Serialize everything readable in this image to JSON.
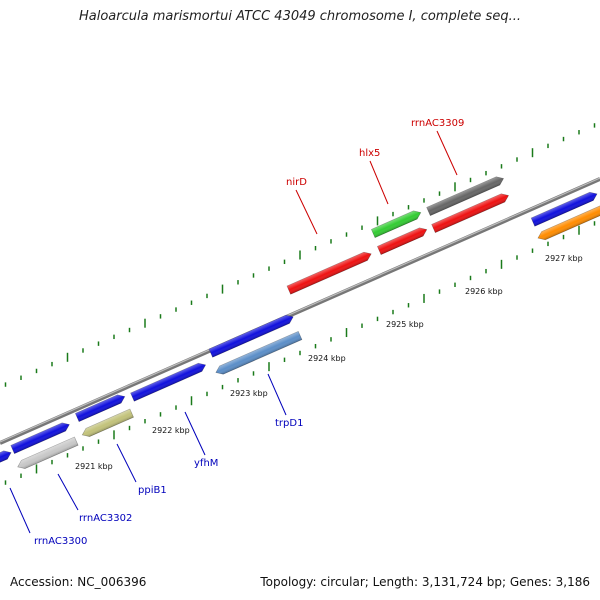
{
  "title": "Haloarcula marismortui ATCC 43049 chromosome I, complete seq...",
  "footer": {
    "accession": "Accession: NC_006396",
    "summary": "Topology: circular; Length: 3,131,724 bp; Genes: 3,186"
  },
  "colors": {
    "backbone": "#808080",
    "tick": "#1a7a1a",
    "forward_label": "#cc0000",
    "reverse_label": "#0000bb"
  },
  "ticks": [
    {
      "label": "2921 kbp"
    },
    {
      "label": "2922 kbp"
    },
    {
      "label": "2923 kbp"
    },
    {
      "label": "2924 kbp"
    },
    {
      "label": "2925 kbp"
    },
    {
      "label": "2926 kbp"
    },
    {
      "label": "2927 kbp"
    }
  ],
  "features": {
    "forward": [
      {
        "color": "#ee1111"
      },
      {
        "color": "#ee1111"
      },
      {
        "color": "#ee1111"
      },
      {
        "color": "#33cc33"
      },
      {
        "color": "#666666"
      }
    ],
    "blue": [
      {
        "color": "#1010dd"
      },
      {
        "color": "#1010dd"
      },
      {
        "color": "#1010dd"
      },
      {
        "color": "#1010dd"
      },
      {
        "color": "#1010dd"
      },
      {
        "color": "#1010dd"
      },
      {
        "color": "#1010dd"
      }
    ],
    "reverse": [
      {
        "color": "#c8c8c8"
      },
      {
        "color": "#c2c27a"
      },
      {
        "color": "#5b8ec8"
      },
      {
        "color": "#ff8c00"
      }
    ]
  },
  "gene_labels": {
    "nirD": "nirD",
    "hlx5": "hlx5",
    "rrnAC3309": "rrnAC3309",
    "rrnAC3300": "rrnAC3300",
    "rrnAC3302": "rrnAC3302",
    "ppiB1": "ppiB1",
    "yfhM": "yfhM",
    "trpD1": "trpD1"
  }
}
